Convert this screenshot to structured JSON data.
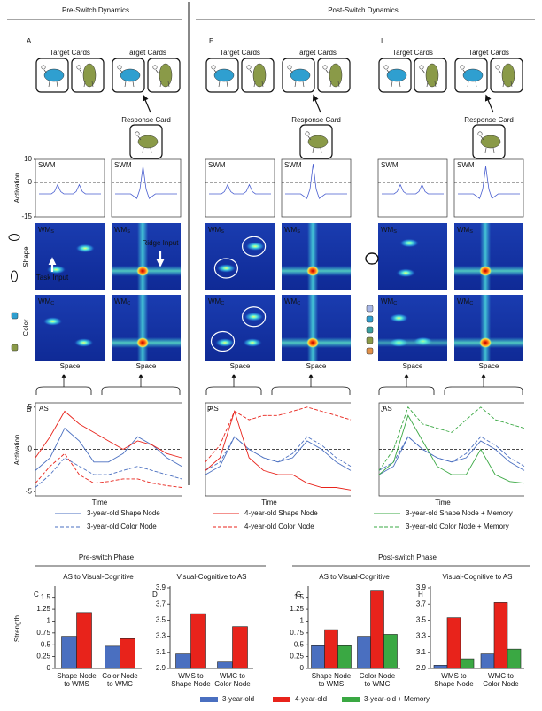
{
  "headers": {
    "pre": "Pre-Switch Dynamics",
    "post": "Post-Switch Dynamics"
  },
  "panel_letters": [
    "A",
    "E",
    "I",
    "B",
    "F",
    "J",
    "C",
    "D",
    "G",
    "H"
  ],
  "cards": {
    "target": "Target Cards",
    "response": "Response Card"
  },
  "swm": {
    "label": "SWM",
    "ylabel": "Activation",
    "ylim": [
      -15,
      10
    ],
    "yticks": [
      10,
      0,
      -15
    ],
    "traces": [
      [
        -5,
        -5,
        -5,
        -5,
        -5,
        -4,
        -1,
        -4,
        -5,
        -5,
        -5,
        -5,
        -4,
        -1,
        -4,
        -5,
        -5,
        -5,
        -5,
        -5,
        -5
      ],
      [
        -5,
        -5,
        -5,
        -5,
        -5,
        -5,
        -6,
        -7,
        -3,
        7,
        -3,
        -7,
        -6,
        -5,
        -5,
        -5,
        -5,
        -5,
        -5,
        -5,
        -5
      ],
      [
        -5,
        -5,
        -5,
        -5,
        -5,
        -4,
        -1,
        -4,
        -5,
        -5,
        -5,
        -5,
        -4,
        -1,
        -4,
        -5,
        -5,
        -5,
        -5,
        -5,
        -5
      ],
      [
        -5,
        -5,
        -5,
        -5,
        -5,
        -5,
        -6,
        -7,
        -3,
        8,
        -3,
        -7,
        -6,
        -5,
        -5,
        -5,
        -5,
        -5,
        -5,
        -5,
        -5
      ],
      [
        -5,
        -5,
        -5,
        -5,
        -5,
        -4,
        -1,
        -4,
        -5,
        -5,
        -5,
        -5,
        -4,
        -1,
        -4,
        -5,
        -5,
        -5,
        -5,
        -5,
        -5
      ],
      [
        -5,
        -5,
        -5,
        -5,
        -5,
        -5,
        -6,
        -7,
        -3,
        7,
        -3,
        -7,
        -6,
        -5,
        -5,
        -5,
        -5,
        -5,
        -5,
        -5,
        -5
      ]
    ]
  },
  "wm": {
    "base": "WM",
    "sub_s": "S",
    "sub_c": "C",
    "shape": "Shape",
    "color": "Color",
    "task_input": "Task Input",
    "ridge_input": "Ridge Input",
    "space": "Space"
  },
  "as": {
    "label": "AS",
    "ylabel": "Activation",
    "xlabel": "Time",
    "ylim": [
      -5.5,
      5.5
    ],
    "yticks": [
      5,
      0,
      -5
    ],
    "legend": [
      {
        "name": "3-year-old Shape Node",
        "color": "#4a6fc0",
        "dashed": false
      },
      {
        "name": "4-year-old Shape Node",
        "color": "#e8231b",
        "dashed": false
      },
      {
        "name": "3-year-old Shape Node + Memory",
        "color": "#3aa843",
        "dashed": false
      },
      {
        "name": "3-year-old Color Node",
        "color": "#4a6fc0",
        "dashed": true
      },
      {
        "name": "4-year-old Color Node",
        "color": "#e8231b",
        "dashed": true
      },
      {
        "name": "3-year-old  Color Node + Memory",
        "color": "#3aa843",
        "dashed": true
      }
    ],
    "panels": [
      {
        "series": [
          {
            "color": "#4a6fc0",
            "dashed": false,
            "values": [
              -2.5,
              -1,
              2.5,
              1,
              -1.5,
              -1.5,
              -0.5,
              1.5,
              0.5,
              -1,
              -2
            ]
          },
          {
            "color": "#4a6fc0",
            "dashed": true,
            "values": [
              -4.5,
              -3,
              -1,
              -2,
              -3,
              -3,
              -2.5,
              -2,
              -2.5,
              -3,
              -3.5
            ]
          },
          {
            "color": "#e8231b",
            "dashed": false,
            "values": [
              -1,
              1.5,
              4.5,
              3,
              2,
              1,
              0,
              1,
              0.5,
              -0.5,
              -1
            ]
          },
          {
            "color": "#e8231b",
            "dashed": true,
            "values": [
              -4,
              -2,
              -0.5,
              -3,
              -4,
              -3.8,
              -3.5,
              -3.5,
              -4,
              -4.3,
              -4.5
            ]
          }
        ]
      },
      {
        "series": [
          {
            "color": "#4a6fc0",
            "dashed": false,
            "values": [
              -3,
              -2,
              1.5,
              0,
              -1,
              -1.5,
              -1,
              1,
              0,
              -1.5,
              -2.5
            ]
          },
          {
            "color": "#4a6fc0",
            "dashed": true,
            "values": [
              -2.5,
              -1.5,
              1.5,
              0,
              -1,
              -1.5,
              -0.5,
              1.5,
              0.5,
              -1,
              -2
            ]
          },
          {
            "color": "#e8231b",
            "dashed": false,
            "values": [
              -2.5,
              -1,
              4.5,
              -1,
              -2.5,
              -3,
              -3,
              -4,
              -4.5,
              -4.5,
              -4.8
            ]
          },
          {
            "color": "#e8231b",
            "dashed": true,
            "values": [
              -1.5,
              0.5,
              4.5,
              3.5,
              4,
              4,
              4.5,
              5,
              4.5,
              4,
              3.5
            ]
          }
        ]
      },
      {
        "series": [
          {
            "color": "#4a6fc0",
            "dashed": false,
            "values": [
              -3,
              -2,
              1.5,
              0,
              -1,
              -1.5,
              -1,
              1,
              0,
              -1.5,
              -2.5
            ]
          },
          {
            "color": "#4a6fc0",
            "dashed": true,
            "values": [
              -2.5,
              -1.5,
              1.5,
              0,
              -1,
              -1.5,
              -0.5,
              1.5,
              0.5,
              -1,
              -2
            ]
          },
          {
            "color": "#3aa843",
            "dashed": false,
            "values": [
              -3,
              -1.5,
              4,
              1,
              -2,
              -3,
              -3,
              0,
              -3,
              -3.8,
              -4
            ]
          },
          {
            "color": "#3aa843",
            "dashed": true,
            "values": [
              -2.5,
              0,
              5,
              3,
              2.5,
              2,
              3.5,
              5,
              3.5,
              3,
              2.5
            ]
          }
        ]
      }
    ]
  },
  "bar_sections": [
    "Pre-switch Phase",
    "Post-switch Phase"
  ],
  "chart_data": [
    {
      "type": "bar",
      "title": "AS to Visual-Cognitive",
      "ylabel": "Strength",
      "categories": [
        [
          "Shape Node",
          "to WMS"
        ],
        [
          "Color Node",
          "to WMC"
        ]
      ],
      "series": [
        {
          "name": "3-year-old",
          "color": "#4a6fc0",
          "values": [
            0.68,
            0.47
          ]
        },
        {
          "name": "4-year-old",
          "color": "#e8231b",
          "values": [
            1.18,
            0.63
          ]
        }
      ],
      "ylim": [
        0,
        1.7
      ],
      "yticks": [
        0,
        0.25,
        0.5,
        0.75,
        1,
        1.25,
        1.5
      ]
    },
    {
      "type": "bar",
      "title": "Visual-Cognitive to AS",
      "categories": [
        [
          "WMS to",
          "Shape Node"
        ],
        [
          "WMC to",
          "Color Node"
        ]
      ],
      "series": [
        {
          "name": "3-year-old",
          "color": "#4a6fc0",
          "values": [
            3.08,
            2.98
          ]
        },
        {
          "name": "4-year-old",
          "color": "#e8231b",
          "values": [
            3.58,
            3.42
          ]
        }
      ],
      "ylim": [
        2.9,
        3.9
      ],
      "yticks": [
        2.9,
        3.1,
        3.3,
        3.5,
        3.7,
        3.9
      ]
    },
    {
      "type": "bar",
      "title": "AS to Visual-Cognitive",
      "categories": [
        [
          "Shape Node",
          "to WMS"
        ],
        [
          "Color Node",
          "to WMC"
        ]
      ],
      "series": [
        {
          "name": "3-year-old",
          "color": "#4a6fc0",
          "values": [
            0.48,
            0.68
          ]
        },
        {
          "name": "4-year-old",
          "color": "#e8231b",
          "values": [
            0.82,
            1.65
          ]
        },
        {
          "name": "3-year-old + Memory",
          "color": "#3aa843",
          "values": [
            0.48,
            0.72
          ]
        }
      ],
      "ylim": [
        0,
        1.7
      ],
      "yticks": [
        0,
        0.25,
        0.5,
        0.75,
        1,
        1.25,
        1.5
      ]
    },
    {
      "type": "bar",
      "title": "Visual-Cognitive to AS",
      "categories": [
        [
          "WMS to",
          "Shape Node"
        ],
        [
          "WMC to",
          "Color Node"
        ]
      ],
      "series": [
        {
          "name": "3-year-old",
          "color": "#4a6fc0",
          "values": [
            2.94,
            3.08
          ]
        },
        {
          "name": "4-year-old",
          "color": "#e8231b",
          "values": [
            3.53,
            3.72
          ]
        },
        {
          "name": "3-year-old + Memory",
          "color": "#3aa843",
          "values": [
            3.02,
            3.14
          ]
        }
      ],
      "ylim": [
        2.9,
        3.9
      ],
      "yticks": [
        2.9,
        3.1,
        3.3,
        3.5,
        3.7,
        3.9
      ]
    }
  ]
}
